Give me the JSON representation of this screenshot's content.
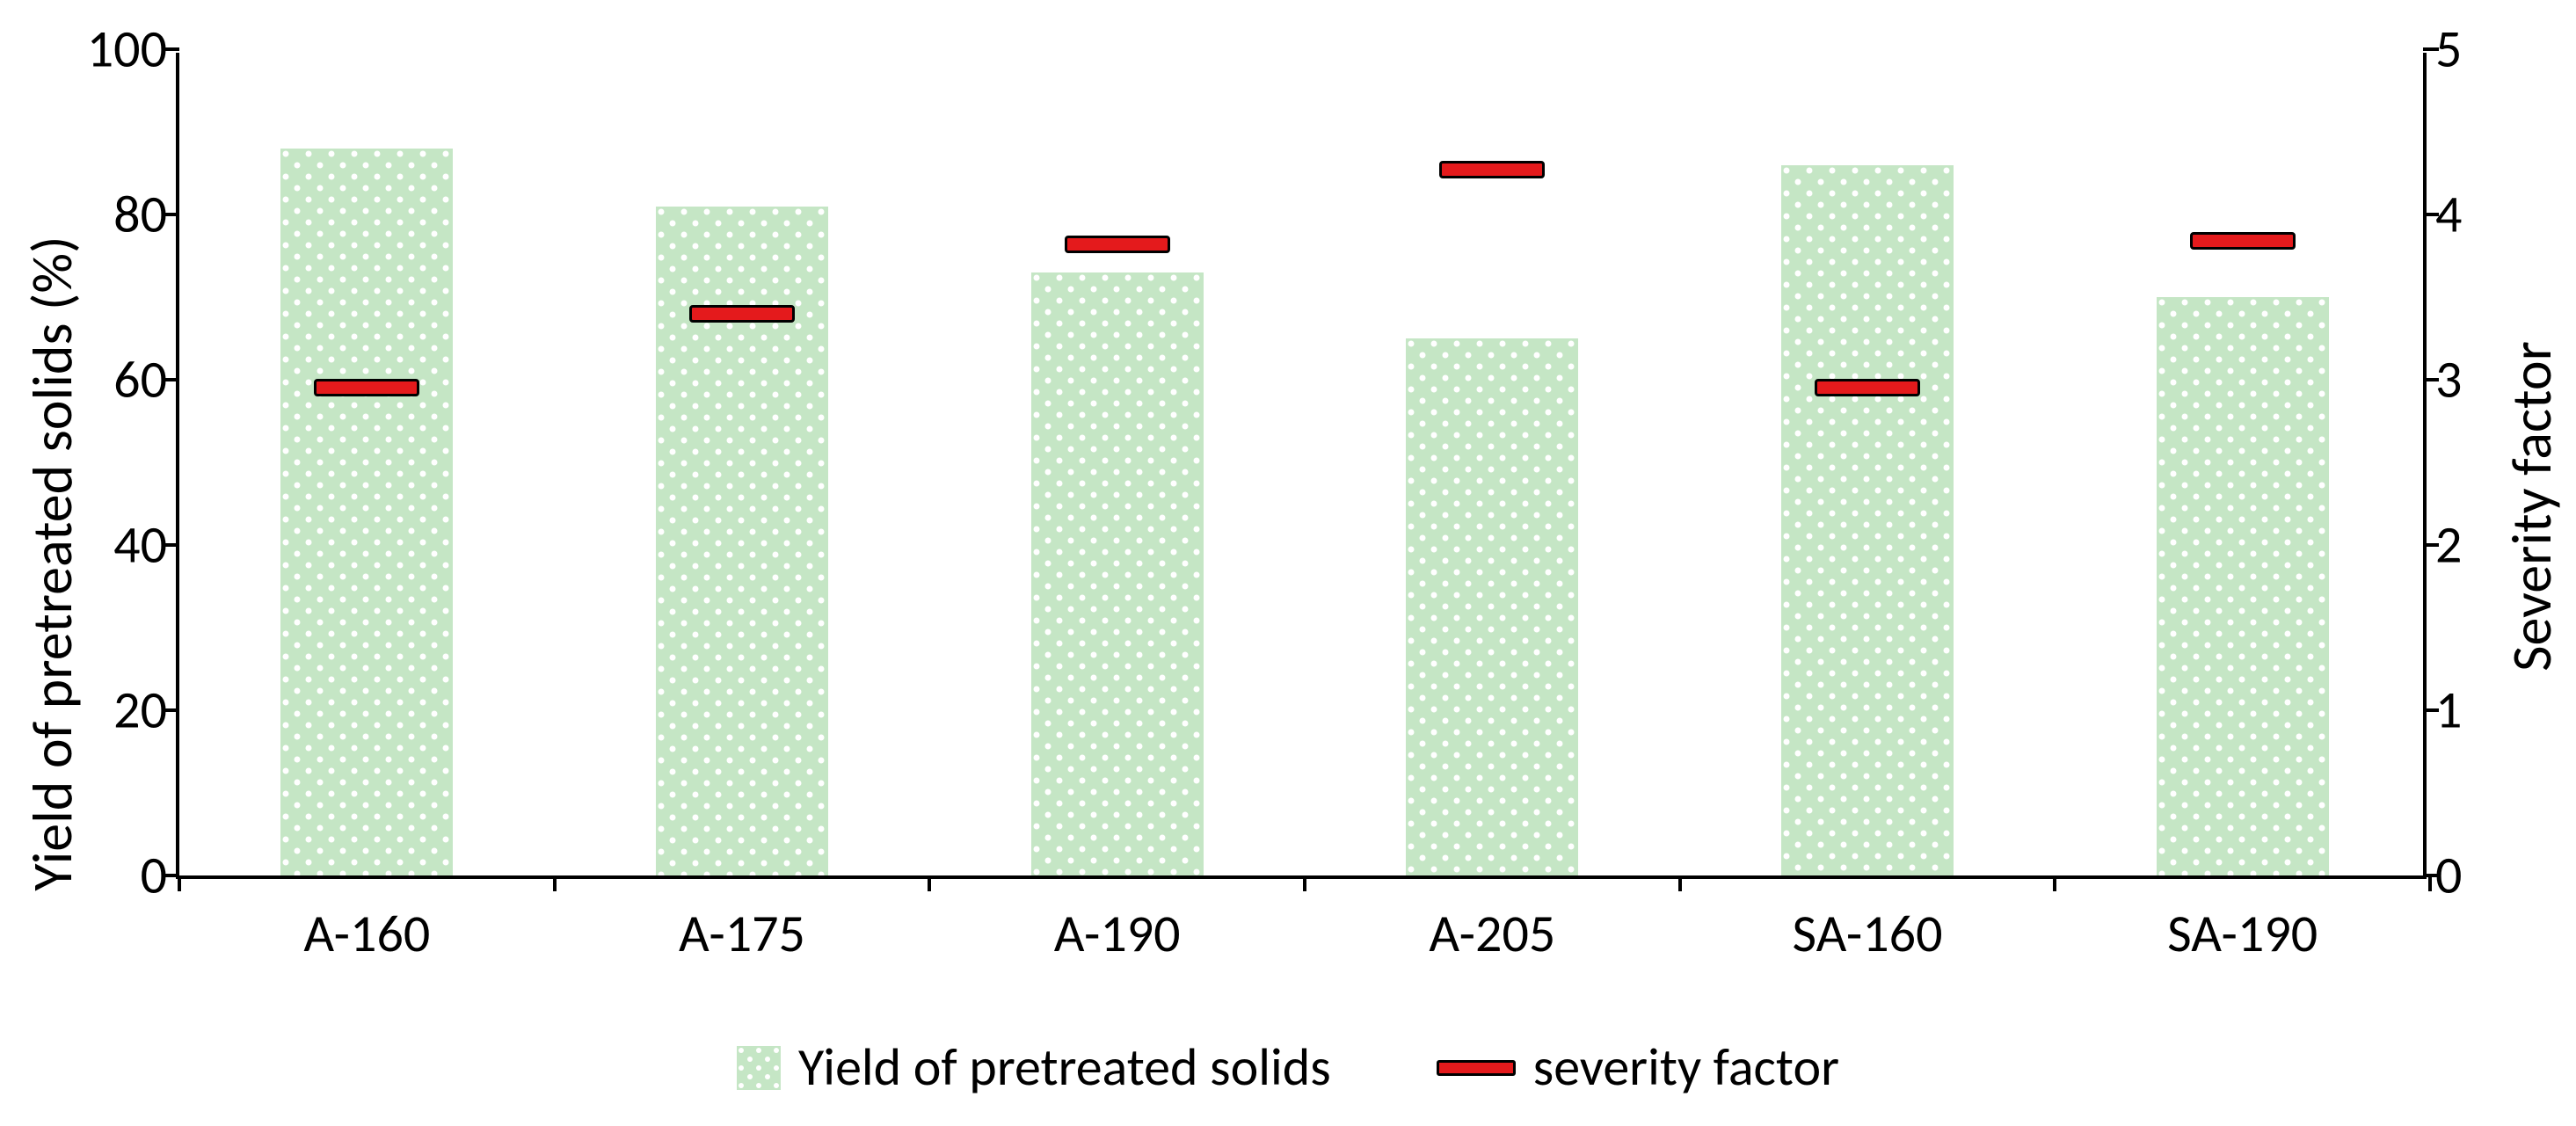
{
  "chart": {
    "type": "bar+marker",
    "background_color": "#ffffff",
    "axis_line_color": "#000000",
    "axis_line_width": 4,
    "font_family": "Calibri",
    "y_left": {
      "label": "Yield of pretreated solids (%)",
      "label_fontsize": 64,
      "min": 0,
      "max": 100,
      "ticks": [
        0,
        20,
        40,
        60,
        80,
        100
      ],
      "tick_fontsize": 60
    },
    "y_right": {
      "label": "Severity factor",
      "label_fontsize": 64,
      "min": 0,
      "max": 5,
      "ticks": [
        0,
        1,
        2,
        3,
        4,
        5
      ],
      "tick_fontsize": 60
    },
    "categories": [
      "A-160",
      "A-175",
      "A-190",
      "A-205",
      "SA-160",
      "SA-190"
    ],
    "x_label_fontsize": 60,
    "bars": {
      "name": "Yield of pretreated solids",
      "values": [
        88,
        81,
        73,
        65,
        86,
        70
      ],
      "fill_color": "#c5e6c5",
      "dot_color": "#ffffff",
      "bar_width_frac": 0.46
    },
    "markers": {
      "name": "severity factor",
      "values": [
        2.95,
        3.4,
        3.82,
        4.27,
        2.95,
        3.84
      ],
      "color": "#e41a1c",
      "border_color": "#000000",
      "marker_width_px": 120,
      "marker_height_px": 20
    },
    "legend": {
      "items": [
        {
          "label": "Yield of pretreated solids",
          "type": "bar"
        },
        {
          "label": "severity factor",
          "type": "line"
        }
      ],
      "fontsize": 60
    }
  }
}
